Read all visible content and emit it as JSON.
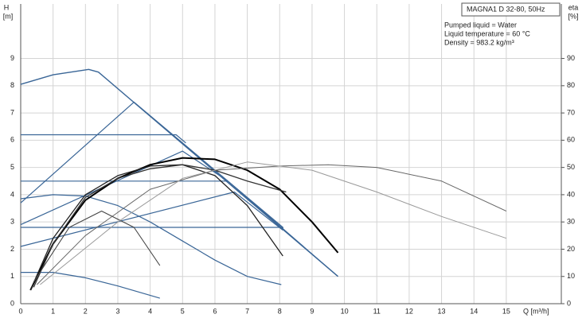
{
  "chart_data": {
    "type": "line",
    "y_label_top": "H",
    "y_label_unit": "[m]",
    "y2_label_top": "eta",
    "y2_label_unit": "[%]",
    "x_label": "Q [m³/h]",
    "info_title": "MAGNA1 D 32-80, 50Hz",
    "info_lines": [
      "Pumped liquid = Water",
      "Liquid temperature = 60 °C",
      "Density = 983.2 kg/m³"
    ],
    "xlim": [
      0,
      16.7
    ],
    "ylim": [
      0,
      11
    ],
    "y2lim": [
      0,
      110
    ],
    "xticks": [
      0,
      1,
      2,
      3,
      4,
      5,
      6,
      7,
      8,
      9,
      10,
      11,
      12,
      13,
      14,
      15
    ],
    "yticks": [
      0,
      1,
      2,
      3,
      4,
      5,
      6,
      7,
      8,
      9
    ],
    "y2ticks": [
      0,
      10,
      20,
      30,
      40,
      50,
      60,
      70,
      80,
      90
    ],
    "grid": true,
    "series": [
      {
        "color": "#3a6697",
        "width": 1.4,
        "x": [
          0,
          1,
          2.1,
          2.4,
          9.8
        ],
        "values": [
          8.05,
          8.4,
          8.6,
          8.5,
          1.0
        ]
      },
      {
        "color": "#3a6697",
        "width": 1.2,
        "x": [
          0,
          4.8,
          5.1
        ],
        "values": [
          6.2,
          6.2,
          5.9
        ]
      },
      {
        "color": "#3a6697",
        "width": 1.2,
        "x": [
          0,
          6.4
        ],
        "values": [
          4.5,
          4.5
        ]
      },
      {
        "color": "#3a6697",
        "width": 1.2,
        "x": [
          0,
          8.1,
          8.1
        ],
        "values": [
          2.8,
          2.8,
          2.7
        ]
      },
      {
        "color": "#3a6697",
        "width": 1.2,
        "x": [
          0,
          3.5,
          8.1
        ],
        "values": [
          3.7,
          7.4,
          2.8
        ]
      },
      {
        "color": "#3a6697",
        "width": 1.2,
        "x": [
          0,
          5,
          6.4,
          9.8
        ],
        "values": [
          2.9,
          5.6,
          4.5,
          1.0
        ]
      },
      {
        "color": "#3a6697",
        "width": 1.2,
        "x": [
          0,
          6.6,
          8.1
        ],
        "values": [
          2.1,
          4.1,
          2.7
        ]
      },
      {
        "color": "#3a6697",
        "width": 1.2,
        "x": [
          0,
          1,
          2,
          3,
          4,
          5,
          6,
          7,
          8.05
        ],
        "values": [
          3.85,
          4.0,
          3.95,
          3.6,
          3.0,
          2.3,
          1.6,
          1.0,
          0.7
        ]
      },
      {
        "color": "#3a6697",
        "width": 1.2,
        "x": [
          0,
          1,
          2,
          3,
          4.3
        ],
        "values": [
          1.15,
          1.15,
          0.95,
          0.65,
          0.2
        ]
      },
      {
        "color": "#000000",
        "width": 2,
        "axis": "y2",
        "x": [
          0.3,
          1,
          2,
          3,
          4,
          5,
          6,
          7,
          8,
          9,
          9.8
        ],
        "values": [
          5,
          22,
          38,
          46,
          51,
          53.5,
          53,
          49,
          42,
          30,
          18.7
        ]
      },
      {
        "color": "#222222",
        "width": 1.3,
        "axis": "y2",
        "x": [
          0.3,
          1,
          2,
          3,
          4,
          5,
          6,
          7,
          8.1
        ],
        "values": [
          5,
          24,
          40,
          47,
          50.5,
          51,
          47,
          36,
          17.5
        ]
      },
      {
        "color": "#333333",
        "width": 1.3,
        "axis": "y2",
        "x": [
          0.4,
          1,
          2,
          3,
          4,
          5,
          6,
          7,
          8.2
        ],
        "values": [
          6,
          22,
          39,
          46,
          49.5,
          51,
          49,
          45,
          41
        ]
      },
      {
        "color": "#444444",
        "width": 1.1,
        "axis": "y2",
        "x": [
          0.4,
          1.5,
          2.5,
          3.5,
          4.3
        ],
        "values": [
          8,
          28,
          34,
          28,
          14
        ]
      },
      {
        "color": "#666666",
        "width": 1,
        "axis": "y2",
        "x": [
          0.5,
          2,
          4,
          6,
          8,
          9.5,
          11,
          13,
          15
        ],
        "values": [
          7,
          25,
          42,
          49,
          50.5,
          51,
          50,
          45,
          34
        ]
      },
      {
        "color": "#999999",
        "width": 1,
        "axis": "y2",
        "x": [
          0.6,
          3,
          5,
          7,
          9,
          11,
          13,
          15
        ],
        "values": [
          7,
          30,
          46,
          52,
          49,
          41,
          32,
          24
        ]
      }
    ]
  }
}
